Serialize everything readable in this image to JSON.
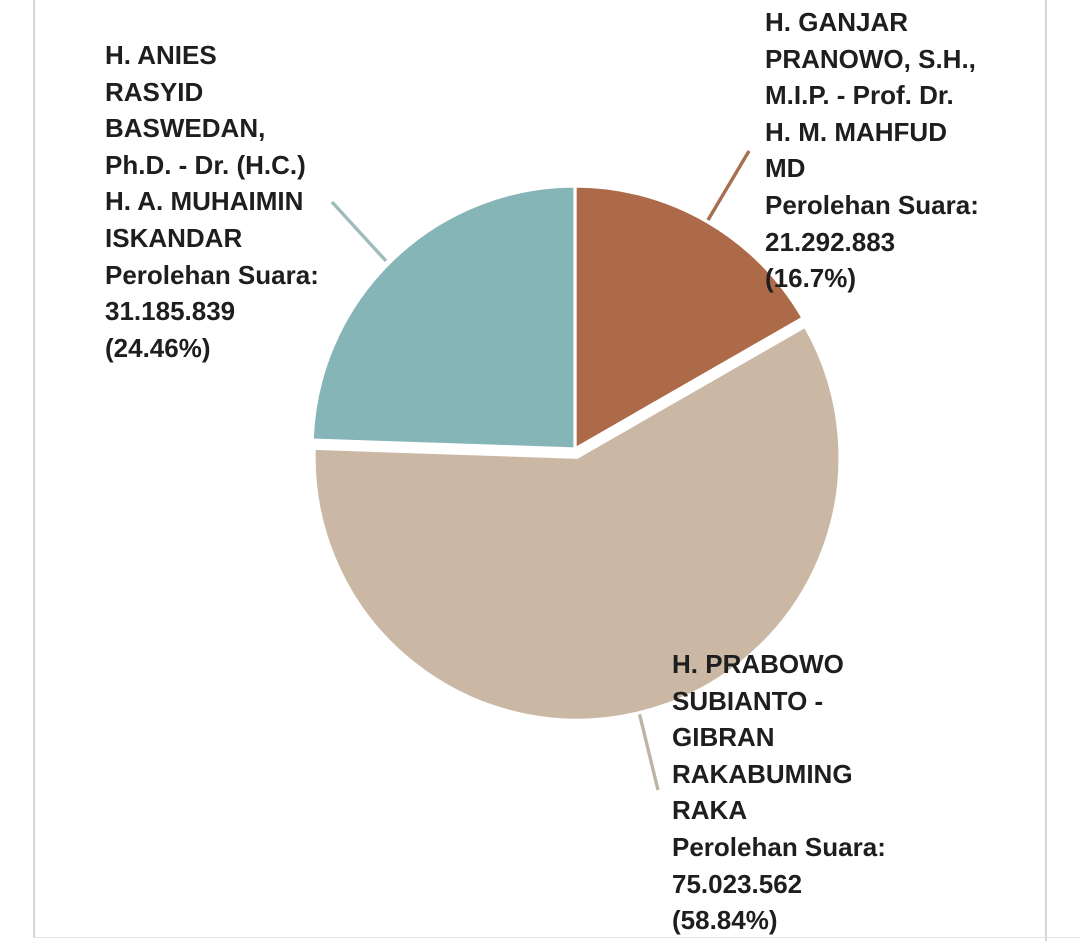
{
  "page": {
    "background": "#ffffff",
    "border_color": "#d4d4d4"
  },
  "chart_data": {
    "type": "pie",
    "title": "",
    "value_label": "Perolehan Suara",
    "start_angle_deg": 0,
    "direction": "clockwise",
    "legend_position": "callout-labels",
    "slices": [
      {
        "name": "H. GANJAR PRANOWO, S.H., M.I.P. - Prof. Dr. H. M. MAHFUD MD",
        "votes": "21.292.883",
        "percent": 16.7,
        "color": "#ad6a49",
        "callout_color": "#a66f4f",
        "exploded": false
      },
      {
        "name": "H. PRABOWO SUBIANTO - GIBRAN RAKABUMING RAKA",
        "votes": "75.023.562",
        "percent": 58.84,
        "color": "#cab8a5",
        "callout_color": "#beb4a6",
        "exploded": true
      },
      {
        "name": "H. ANIES RASYID BASWEDAN, Ph.D. - Dr. (H.C.) H. A. MUHAIMIN ISKANDAR",
        "votes": "31.185.839",
        "percent": 24.46,
        "color": "#86b5b7",
        "callout_color": "#9dbcba",
        "exploded": false
      }
    ]
  },
  "labels": {
    "anies": "H. ANIES\nRASYID\nBASWEDAN,\nPh.D. - Dr. (H.C.)\nH. A. MUHAIMIN\nISKANDAR\nPerolehan Suara:\n31.185.839\n(24.46%)",
    "ganjar": "H. GANJAR\nPRANOWO, S.H.,\nM.I.P. - Prof. Dr.\nH. M. MAHFUD\nMD\nPerolehan Suara:\n21.292.883\n(16.7%)",
    "prabowo": "H. PRABOWO\nSUBIANTO -\nGIBRAN\nRAKABUMING\nRAKA\nPerolehan Suara:\n75.023.562\n(58.84%)"
  }
}
